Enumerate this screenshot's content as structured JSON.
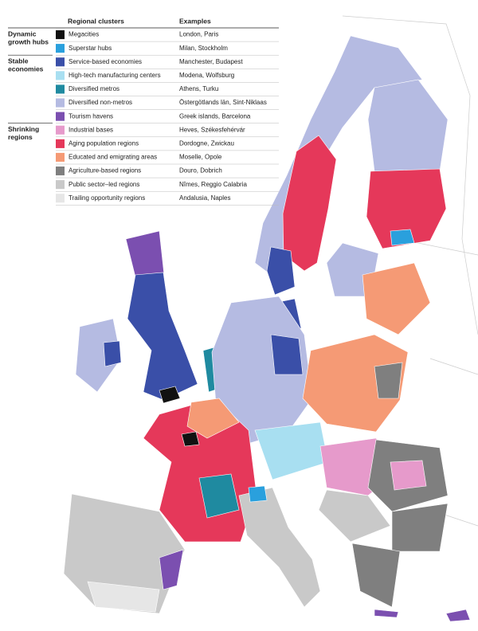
{
  "legend": {
    "header": {
      "clusters": "Regional clusters",
      "examples": "Examples"
    },
    "groups": [
      {
        "label": [
          "Dynamic",
          "growth hubs"
        ],
        "rows": [
          {
            "name": "Megacities",
            "color": "#111111",
            "example": "London, Paris"
          },
          {
            "name": "Superstar hubs",
            "color": "#2aa0dd",
            "example": "Milan, Stockholm"
          }
        ]
      },
      {
        "label": [
          "Stable",
          "economies"
        ],
        "rows": [
          {
            "name": "Service-based economies",
            "color": "#3a4fa8",
            "example": "Manchester, Budapest"
          },
          {
            "name": "High-tech manufacturing centers",
            "color": "#a8dff1",
            "example": "Modena, Wolfsburg"
          },
          {
            "name": "Diversified metros",
            "color": "#1f8aa0",
            "example": "Athens, Turku"
          },
          {
            "name": "Diversified non-metros",
            "color": "#b5bbe2",
            "example": "Östergötlands län, Sint-Niklaas"
          },
          {
            "name": "Tourism havens",
            "color": "#7b4fb0",
            "example": "Greek islands, Barcelona"
          }
        ]
      },
      {
        "label": [
          "Shrinking",
          "regions"
        ],
        "rows": [
          {
            "name": "Industrial bases",
            "color": "#e69acb",
            "example": "Heves, Székesfehérvár"
          },
          {
            "name": "Aging population regions",
            "color": "#e5385a",
            "example": "Dordogne, Zwickau"
          },
          {
            "name": "Educated and emigrating areas",
            "color": "#f59a75",
            "example": "Moselle, Opole"
          },
          {
            "name": "Agriculture-based regions",
            "color": "#7f7f7f",
            "example": "Douro, Dobrich"
          },
          {
            "name": "Public sector–led regions",
            "color": "#c9c9c9",
            "example": "Nîmes, Reggio Calabria"
          },
          {
            "name": "Trailing opportunity regions",
            "color": "#e6e6e6",
            "example": "Andalusia, Naples"
          }
        ]
      }
    ]
  }
}
